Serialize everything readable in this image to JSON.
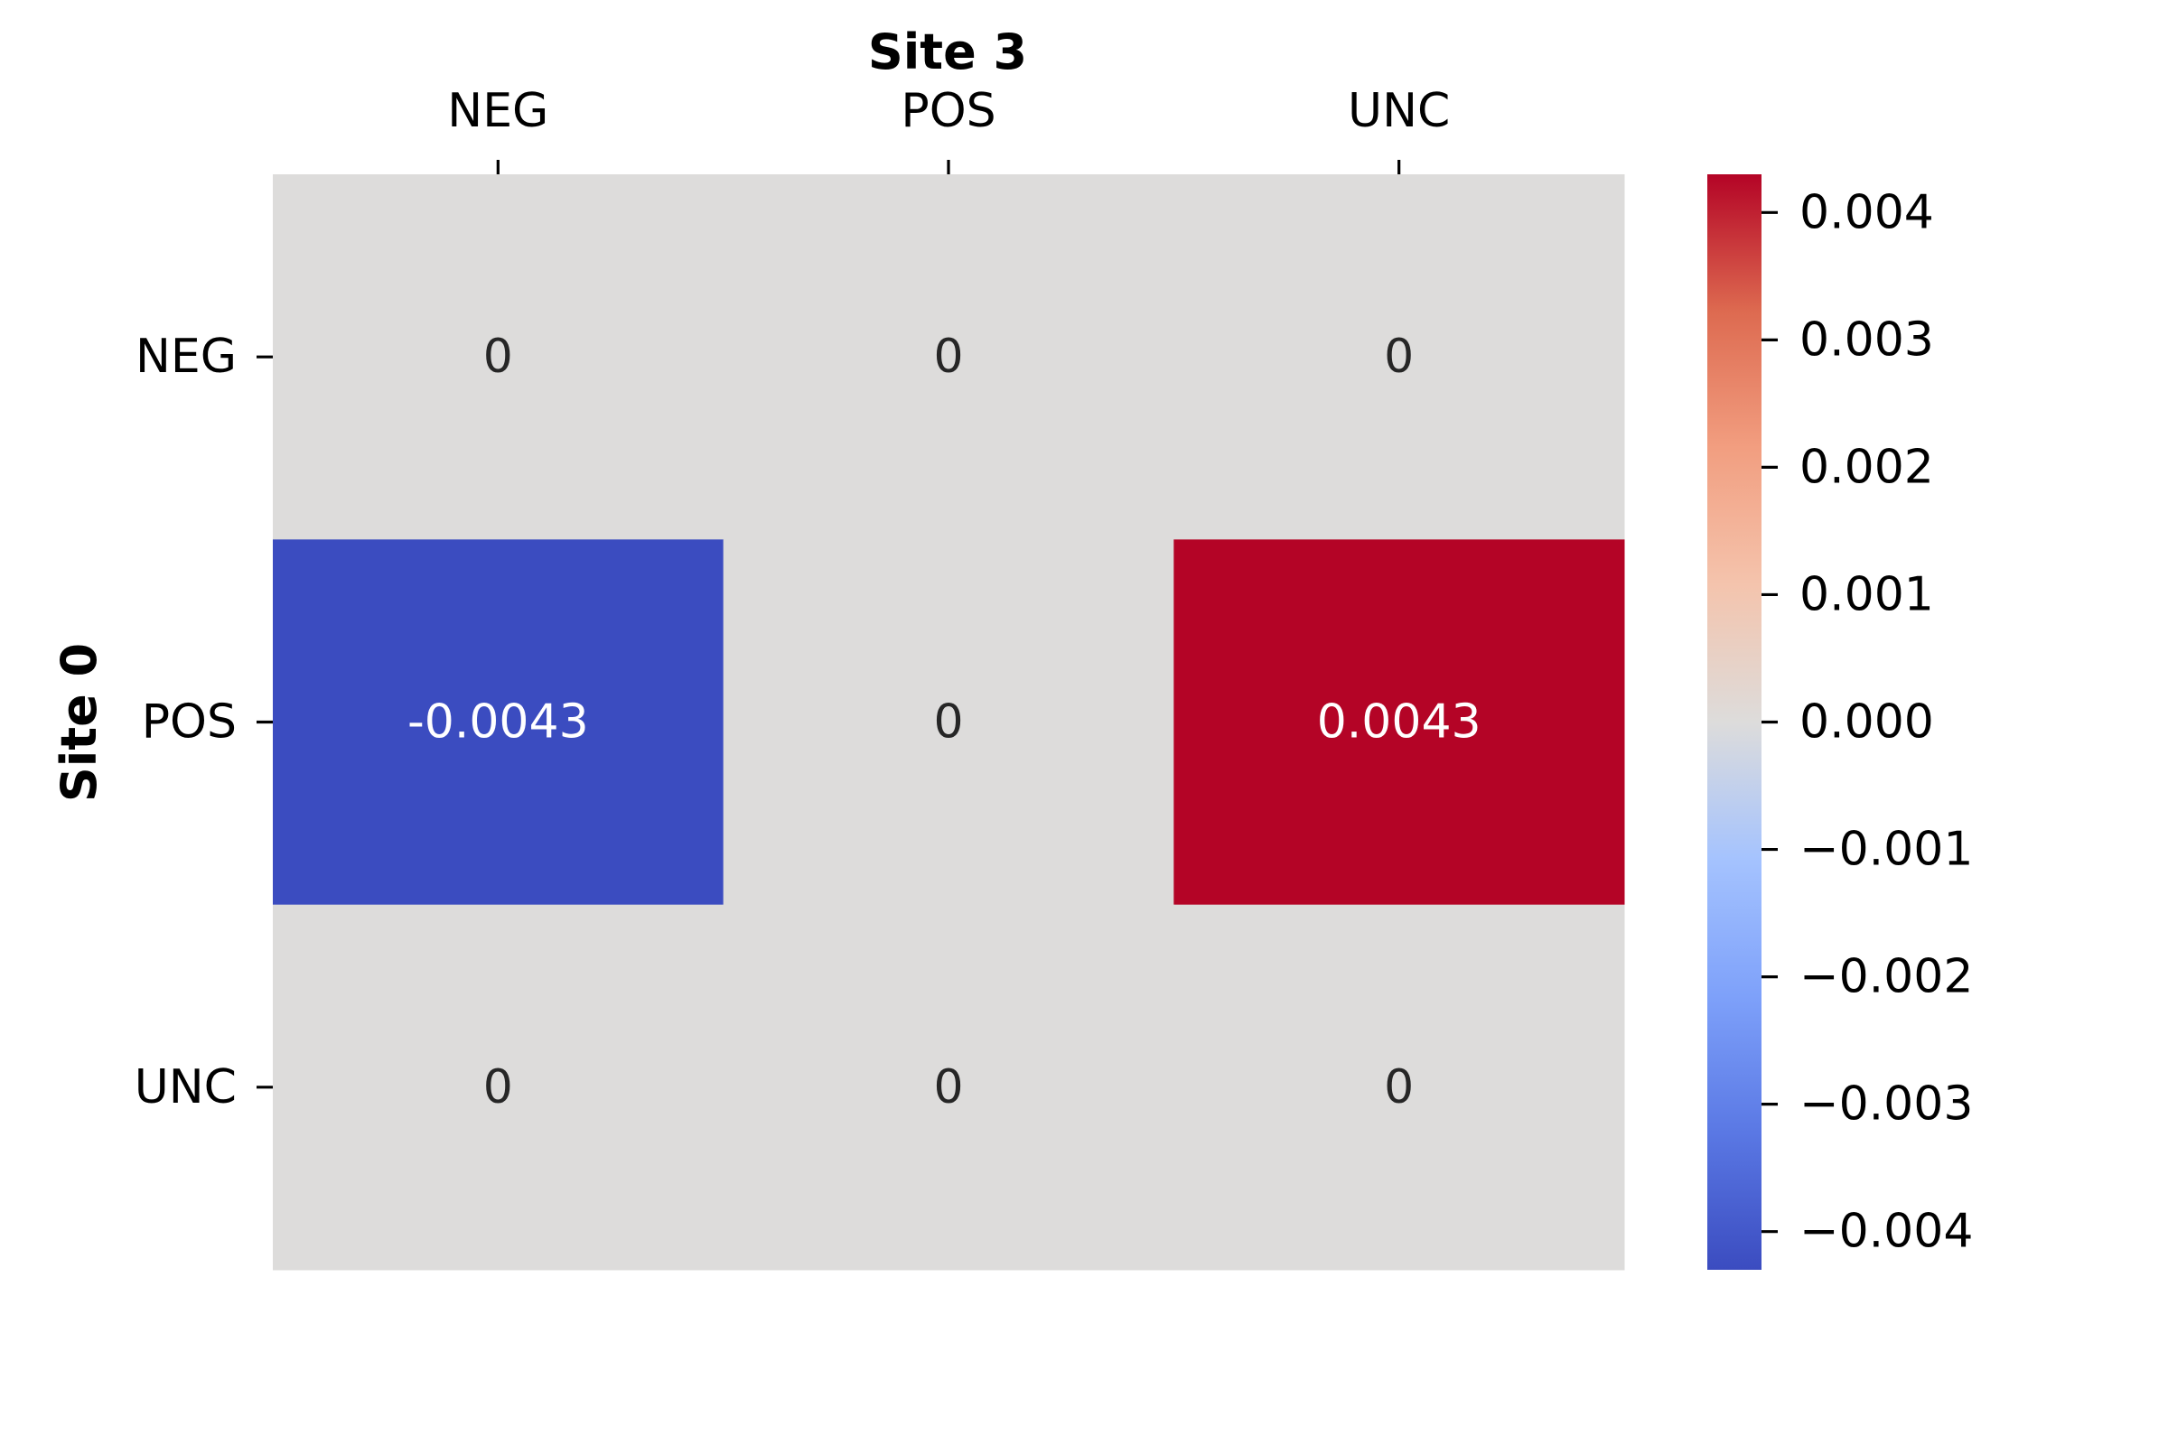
{
  "chart_data": {
    "type": "heatmap",
    "xlabel": "Site 3",
    "ylabel": "Site 0",
    "x_categories": [
      "NEG",
      "POS",
      "UNC"
    ],
    "y_categories": [
      "NEG",
      "POS",
      "UNC"
    ],
    "values": [
      [
        0,
        0,
        0
      ],
      [
        -0.0043,
        0,
        0.0043
      ],
      [
        0,
        0,
        0
      ]
    ],
    "annotations": [
      [
        "0",
        "0",
        "0"
      ],
      [
        "-0.0043",
        "0",
        "0.0043"
      ],
      [
        "0",
        "0",
        "0"
      ]
    ],
    "x_axis_position": "top",
    "colormap": "coolwarm",
    "colors": {
      "low": "#3b4cc0",
      "mid": "#dddcdb",
      "high": "#b40426"
    },
    "colorbar": {
      "range": [
        -0.0043,
        0.0043
      ],
      "ticks": [
        0.004,
        0.003,
        0.002,
        0.001,
        0.0,
        -0.001,
        -0.002,
        -0.003,
        -0.004
      ],
      "tick_labels": [
        "0.004",
        "0.003",
        "0.002",
        "0.001",
        "0.000",
        "−0.001",
        "−0.002",
        "−0.003",
        "−0.004"
      ]
    }
  }
}
